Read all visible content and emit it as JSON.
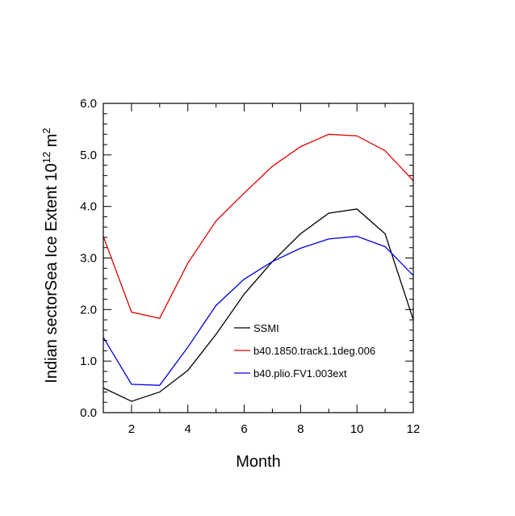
{
  "chart_data": {
    "type": "line",
    "title": "",
    "xlabel": "Month",
    "ylabel": {
      "prefix": "Indian sectorSea Ice Extent 10",
      "exponent": "12",
      "unit": " m",
      "unit_exponent": "2"
    },
    "xlim": [
      1,
      12
    ],
    "ylim": [
      0,
      6
    ],
    "x_ticks": [
      2,
      4,
      6,
      8,
      10,
      12
    ],
    "x_tick_labels": [
      "2",
      "4",
      "6",
      "8",
      "10",
      "12"
    ],
    "y_ticks": [
      0,
      1,
      2,
      3,
      4,
      5,
      6
    ],
    "y_tick_labels": [
      "0.0",
      "1.0",
      "2.0",
      "3.0",
      "4.0",
      "5.0",
      "6.0"
    ],
    "x": [
      1,
      2,
      3,
      4,
      5,
      6,
      7,
      8,
      9,
      10,
      11,
      12
    ],
    "legend_position": "center-right",
    "grid": false,
    "series": [
      {
        "name": "SSMI",
        "color": "#000000",
        "values": [
          0.48,
          0.22,
          0.4,
          0.82,
          1.52,
          2.3,
          2.93,
          3.47,
          3.87,
          3.95,
          3.47,
          1.8
        ]
      },
      {
        "name": "b40.1850.track1.1deg.006",
        "color": "#e00000",
        "values": [
          3.42,
          1.95,
          1.83,
          2.9,
          3.72,
          4.26,
          4.78,
          5.16,
          5.4,
          5.37,
          5.08,
          4.5
        ]
      },
      {
        "name": "b40.plio.FV1.003ext",
        "color": "#0000e0",
        "values": [
          1.46,
          0.55,
          0.53,
          1.27,
          2.08,
          2.59,
          2.93,
          3.19,
          3.37,
          3.42,
          3.22,
          2.66
        ]
      }
    ]
  }
}
